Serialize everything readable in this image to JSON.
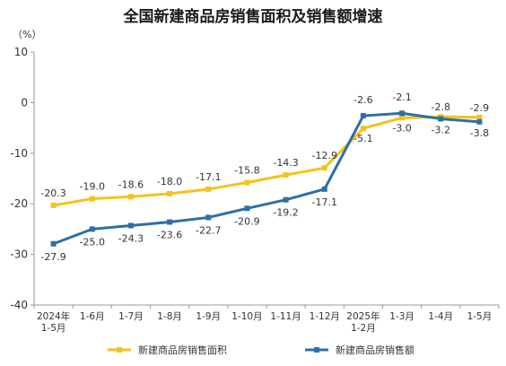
{
  "chart_data": {
    "type": "line",
    "title": "全国新建商品房销售面积及销售额增速",
    "y_unit": "（%）",
    "ylim": [
      -40,
      10
    ],
    "yticks": [
      "10",
      "0",
      "-10",
      "-20",
      "-30",
      "-40"
    ],
    "grid": false,
    "legend_position": "bottom",
    "categories": [
      [
        "2024年",
        "1-5月"
      ],
      [
        "1-6月"
      ],
      [
        "1-7月"
      ],
      [
        "1-8月"
      ],
      [
        "1-9月"
      ],
      [
        "1-10月"
      ],
      [
        "1-11月"
      ],
      [
        "1-12月"
      ],
      [
        "2025年",
        "1-2月"
      ],
      [
        "1-3月"
      ],
      [
        "1-4月"
      ],
      [
        "1-5月"
      ]
    ],
    "series": [
      {
        "name": "新建商品房销售面积",
        "color": "#f4c21b",
        "values": [
          -20.3,
          -19.0,
          -18.6,
          -18.0,
          -17.1,
          -15.8,
          -14.3,
          -12.9,
          -5.1,
          -3.0,
          -2.8,
          -2.9
        ],
        "labels": [
          "-20.3",
          "-19.0",
          "-18.6",
          "-18.0",
          "-17.1",
          "-15.8",
          "-14.3",
          "-12.9",
          "-5.1",
          "-3.0",
          "-2.8",
          "-2.9"
        ]
      },
      {
        "name": "新建商品房销售额",
        "color": "#2e6fa7",
        "values": [
          -27.9,
          -25.0,
          -24.3,
          -23.6,
          -22.7,
          -20.9,
          -19.2,
          -17.1,
          -2.6,
          -2.1,
          -3.2,
          -3.8
        ],
        "labels": [
          "-27.9",
          "-25.0",
          "-24.3",
          "-23.6",
          "-22.7",
          "-20.9",
          "-19.2",
          "-17.1",
          "-2.6",
          "-2.1",
          "-3.2",
          "-3.8"
        ]
      }
    ]
  }
}
